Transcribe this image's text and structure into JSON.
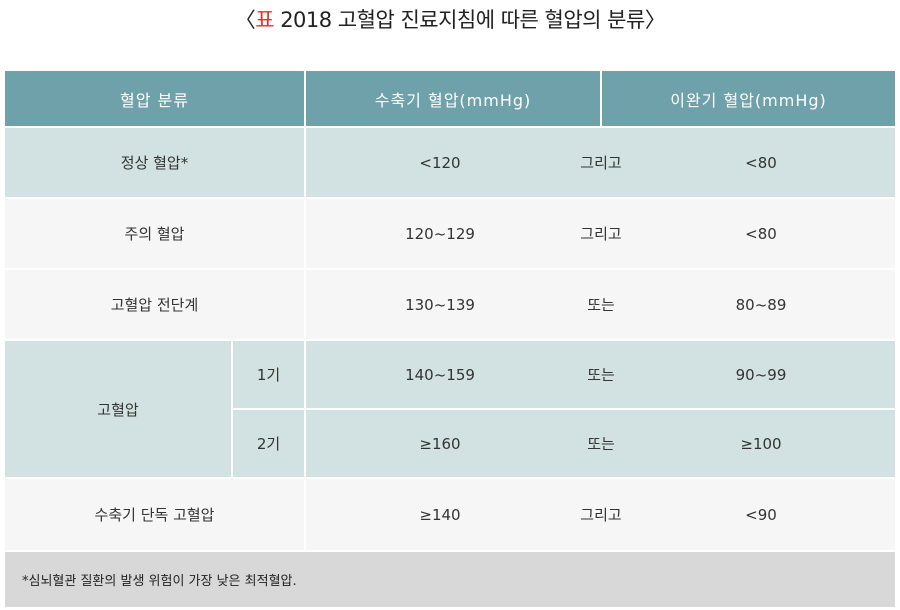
{
  "title": {
    "open": "〈",
    "mark": "표",
    "text": " 2018 고혈압 진료지침에 따른 혈압의 분류",
    "close": "〉"
  },
  "table": {
    "headers": [
      "혈압 분류",
      "수축기 혈압(mmHg)",
      "이완기 혈압(mmHg)"
    ],
    "rows": [
      {
        "category": "정상 혈압*",
        "systolic": "<120",
        "conjunction": "그리고",
        "diastolic": "<80"
      },
      {
        "category": "주의 혈압",
        "systolic": "120~129",
        "conjunction": "그리고",
        "diastolic": "<80"
      },
      {
        "category": "고혈압 전단계",
        "systolic": "130~139",
        "conjunction": "또는",
        "diastolic": "80~89"
      },
      {
        "category": "고혈압",
        "stage": "1기",
        "systolic": "140~159",
        "conjunction": "또는",
        "diastolic": "90~99"
      },
      {
        "category": "고혈압",
        "stage": "2기",
        "systolic": "≥160",
        "conjunction": "또는",
        "diastolic": "≥100"
      },
      {
        "category": "수축기 단독 고혈압",
        "systolic": "≥140",
        "conjunction": "그리고",
        "diastolic": "<90"
      }
    ],
    "footnote": "*심뇌혈관 질환의 발생 위험이 가장 낮은 최적혈압."
  },
  "colors": {
    "header_bg": "#6fa1ab",
    "tinted_row_bg": "#d2e2e3",
    "plain_row_bg": "#f6f6f6",
    "footnote_bg": "#d8d8d8",
    "title_mark": "#e0322e"
  }
}
